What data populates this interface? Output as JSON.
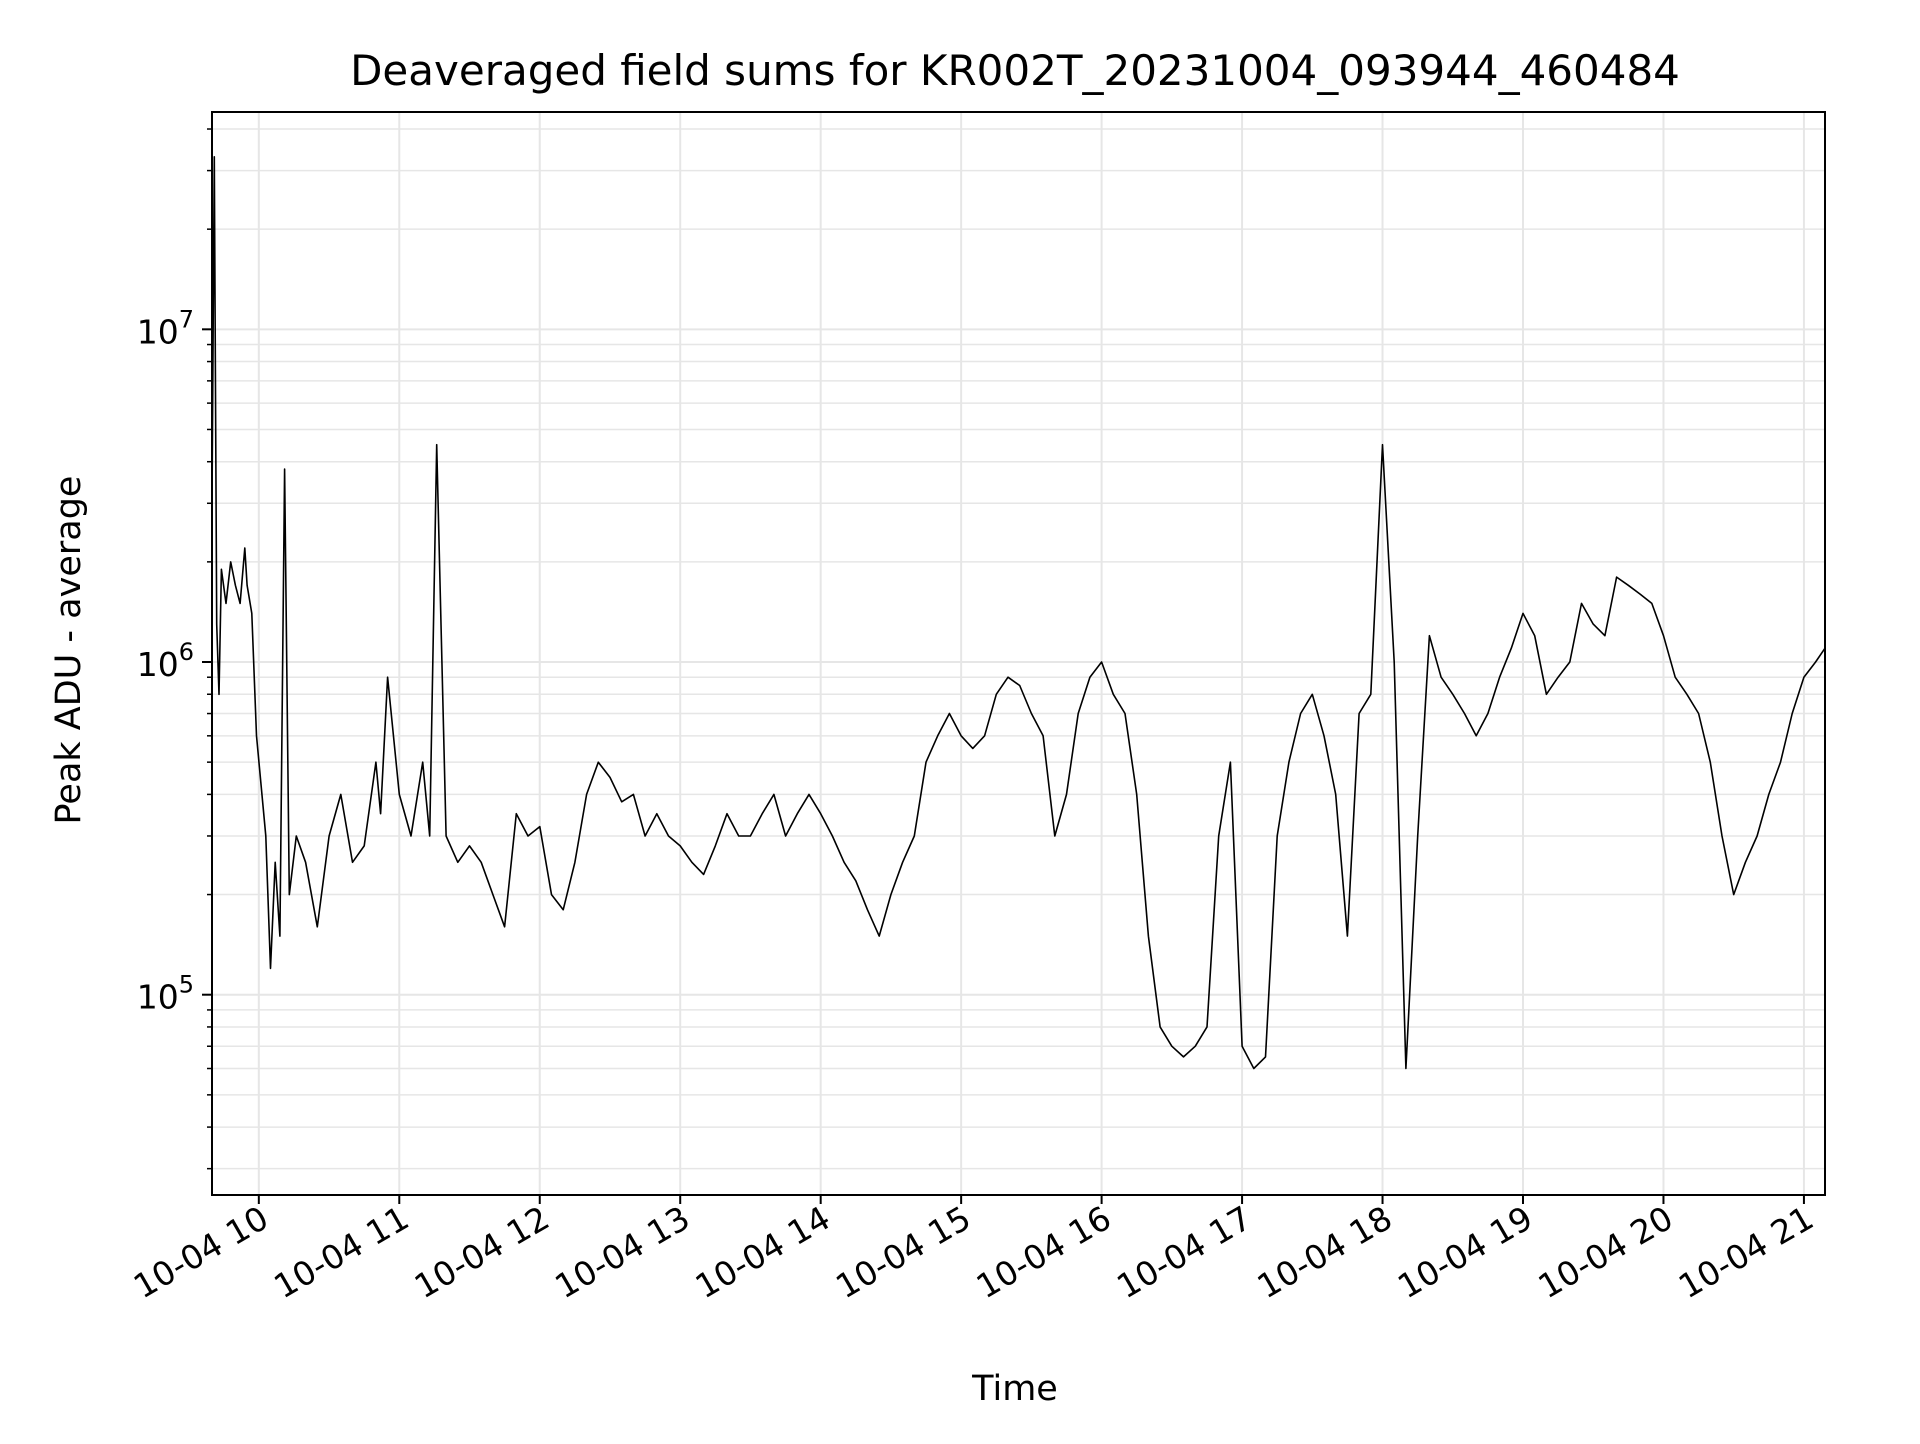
{
  "chart_data": {
    "type": "line",
    "title": "Deaveraged field sums for KR002T_20231004_093944_460484",
    "xlabel": "Time",
    "ylabel": "Peak ADU - average",
    "y_scale": "log",
    "ylim": [
      25000,
      45000000
    ],
    "xlim": [
      "2023-10-04 09:40",
      "2023-10-04 21:09"
    ],
    "grid": true,
    "line_color": "#000000",
    "grid_color": "#e6e6e6",
    "x_ticks": [
      {
        "value": "2023-10-04 10:00",
        "label": "10-04 10"
      },
      {
        "value": "2023-10-04 11:00",
        "label": "10-04 11"
      },
      {
        "value": "2023-10-04 12:00",
        "label": "10-04 12"
      },
      {
        "value": "2023-10-04 13:00",
        "label": "10-04 13"
      },
      {
        "value": "2023-10-04 14:00",
        "label": "10-04 14"
      },
      {
        "value": "2023-10-04 15:00",
        "label": "10-04 15"
      },
      {
        "value": "2023-10-04 16:00",
        "label": "10-04 16"
      },
      {
        "value": "2023-10-04 17:00",
        "label": "10-04 17"
      },
      {
        "value": "2023-10-04 18:00",
        "label": "10-04 18"
      },
      {
        "value": "2023-10-04 19:00",
        "label": "10-04 19"
      },
      {
        "value": "2023-10-04 20:00",
        "label": "10-04 20"
      },
      {
        "value": "2023-10-04 21:00",
        "label": "10-04 21"
      }
    ],
    "y_ticks": [
      {
        "value": 100000,
        "base": "10",
        "exp": "5"
      },
      {
        "value": 1000000,
        "base": "10",
        "exp": "6"
      },
      {
        "value": 10000000,
        "base": "10",
        "exp": "7"
      }
    ],
    "series": [
      {
        "x": [
          "2023-10-04 09:40",
          "2023-10-04 09:41",
          "2023-10-04 09:42",
          "2023-10-04 09:43",
          "2023-10-04 09:44",
          "2023-10-04 09:46",
          "2023-10-04 09:48",
          "2023-10-04 09:50",
          "2023-10-04 09:52",
          "2023-10-04 09:54",
          "2023-10-04 09:55",
          "2023-10-04 09:57",
          "2023-10-04 09:59",
          "2023-10-04 10:03",
          "2023-10-04 10:05",
          "2023-10-04 10:07",
          "2023-10-04 10:09",
          "2023-10-04 10:11",
          "2023-10-04 10:13",
          "2023-10-04 10:16",
          "2023-10-04 10:20",
          "2023-10-04 10:25",
          "2023-10-04 10:30",
          "2023-10-04 10:35",
          "2023-10-04 10:40",
          "2023-10-04 10:45",
          "2023-10-04 10:50",
          "2023-10-04 10:52",
          "2023-10-04 10:55",
          "2023-10-04 11:00",
          "2023-10-04 11:05",
          "2023-10-04 11:10",
          "2023-10-04 11:13",
          "2023-10-04 11:16",
          "2023-10-04 11:20",
          "2023-10-04 11:25",
          "2023-10-04 11:30",
          "2023-10-04 11:35",
          "2023-10-04 11:40",
          "2023-10-04 11:45",
          "2023-10-04 11:50",
          "2023-10-04 11:55",
          "2023-10-04 12:00",
          "2023-10-04 12:05",
          "2023-10-04 12:10",
          "2023-10-04 12:15",
          "2023-10-04 12:20",
          "2023-10-04 12:25",
          "2023-10-04 12:30",
          "2023-10-04 12:35",
          "2023-10-04 12:40",
          "2023-10-04 12:45",
          "2023-10-04 12:50",
          "2023-10-04 12:55",
          "2023-10-04 13:00",
          "2023-10-04 13:05",
          "2023-10-04 13:10",
          "2023-10-04 13:15",
          "2023-10-04 13:20",
          "2023-10-04 13:25",
          "2023-10-04 13:30",
          "2023-10-04 13:35",
          "2023-10-04 13:40",
          "2023-10-04 13:45",
          "2023-10-04 13:50",
          "2023-10-04 13:55",
          "2023-10-04 14:00",
          "2023-10-04 14:05",
          "2023-10-04 14:10",
          "2023-10-04 14:15",
          "2023-10-04 14:20",
          "2023-10-04 14:25",
          "2023-10-04 14:30",
          "2023-10-04 14:35",
          "2023-10-04 14:40",
          "2023-10-04 14:45",
          "2023-10-04 14:50",
          "2023-10-04 14:55",
          "2023-10-04 15:00",
          "2023-10-04 15:05",
          "2023-10-04 15:10",
          "2023-10-04 15:15",
          "2023-10-04 15:20",
          "2023-10-04 15:25",
          "2023-10-04 15:30",
          "2023-10-04 15:35",
          "2023-10-04 15:40",
          "2023-10-04 15:45",
          "2023-10-04 15:50",
          "2023-10-04 15:55",
          "2023-10-04 16:00",
          "2023-10-04 16:05",
          "2023-10-04 16:10",
          "2023-10-04 16:15",
          "2023-10-04 16:20",
          "2023-10-04 16:25",
          "2023-10-04 16:30",
          "2023-10-04 16:35",
          "2023-10-04 16:40",
          "2023-10-04 16:45",
          "2023-10-04 16:50",
          "2023-10-04 16:55",
          "2023-10-04 17:00",
          "2023-10-04 17:05",
          "2023-10-04 17:10",
          "2023-10-04 17:15",
          "2023-10-04 17:20",
          "2023-10-04 17:25",
          "2023-10-04 17:30",
          "2023-10-04 17:35",
          "2023-10-04 17:40",
          "2023-10-04 17:45",
          "2023-10-04 17:50",
          "2023-10-04 17:55",
          "2023-10-04 18:00",
          "2023-10-04 18:05",
          "2023-10-04 18:10",
          "2023-10-04 18:15",
          "2023-10-04 18:20",
          "2023-10-04 18:25",
          "2023-10-04 18:30",
          "2023-10-04 18:35",
          "2023-10-04 18:40",
          "2023-10-04 18:45",
          "2023-10-04 18:50",
          "2023-10-04 18:55",
          "2023-10-04 19:00",
          "2023-10-04 19:05",
          "2023-10-04 19:10",
          "2023-10-04 19:15",
          "2023-10-04 19:20",
          "2023-10-04 19:25",
          "2023-10-04 19:30",
          "2023-10-04 19:35",
          "2023-10-04 19:40",
          "2023-10-04 19:45",
          "2023-10-04 19:50",
          "2023-10-04 19:55",
          "2023-10-04 20:00",
          "2023-10-04 20:05",
          "2023-10-04 20:10",
          "2023-10-04 20:15",
          "2023-10-04 20:20",
          "2023-10-04 20:25",
          "2023-10-04 20:30",
          "2023-10-04 20:35",
          "2023-10-04 20:40",
          "2023-10-04 20:45",
          "2023-10-04 20:50",
          "2023-10-04 20:55",
          "2023-10-04 21:00",
          "2023-10-04 21:05",
          "2023-10-04 21:09"
        ],
        "values": [
          3000000,
          33000000,
          1300000,
          800000,
          1900000,
          1500000,
          2000000,
          1700000,
          1500000,
          2200000,
          1700000,
          1400000,
          600000,
          300000,
          120000,
          250000,
          150000,
          3800000,
          200000,
          300000,
          250000,
          160000,
          300000,
          400000,
          250000,
          280000,
          500000,
          350000,
          900000,
          400000,
          300000,
          500000,
          300000,
          4500000,
          300000,
          250000,
          280000,
          250000,
          200000,
          160000,
          350000,
          300000,
          320000,
          200000,
          180000,
          250000,
          400000,
          500000,
          450000,
          380000,
          400000,
          300000,
          350000,
          300000,
          280000,
          250000,
          230000,
          280000,
          350000,
          300000,
          300000,
          350000,
          400000,
          300000,
          350000,
          400000,
          350000,
          300000,
          250000,
          220000,
          180000,
          150000,
          200000,
          250000,
          300000,
          500000,
          600000,
          700000,
          600000,
          550000,
          600000,
          800000,
          900000,
          850000,
          700000,
          600000,
          300000,
          400000,
          700000,
          900000,
          1000000,
          800000,
          700000,
          400000,
          150000,
          80000,
          70000,
          65000,
          70000,
          80000,
          300000,
          500000,
          70000,
          60000,
          65000,
          300000,
          500000,
          700000,
          800000,
          600000,
          400000,
          150000,
          700000,
          800000,
          4500000,
          1000000,
          60000,
          300000,
          1200000,
          900000,
          800000,
          700000,
          600000,
          700000,
          900000,
          1100000,
          1400000,
          1200000,
          800000,
          900000,
          1000000,
          1500000,
          1300000,
          1200000,
          1800000,
          1700000,
          1600000,
          1500000,
          1200000,
          900000,
          800000,
          700000,
          500000,
          300000,
          200000,
          250000,
          300000,
          400000,
          500000,
          700000,
          900000,
          1000000,
          1100000
        ]
      }
    ]
  }
}
